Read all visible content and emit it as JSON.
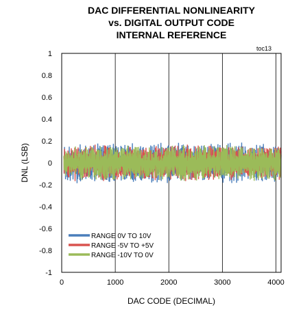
{
  "chart_data": {
    "type": "line",
    "title_lines": [
      "DAC DIFFERENTIAL NONLINEARITY",
      "vs. DIGITAL OUTPUT CODE",
      "INTERNAL REFERENCE"
    ],
    "corner_note": "toc13",
    "xlabel": "DAC CODE (DECIMAL)",
    "ylabel": "DNL (LSB)",
    "xlim": [
      0,
      4096
    ],
    "ylim": [
      -1,
      1
    ],
    "x_ticks": [
      "0",
      "1000",
      "2000",
      "3000",
      "4000"
    ],
    "x_tick_values": [
      0,
      1000,
      2000,
      3000,
      4000
    ],
    "y_ticks": [
      "1",
      "0.8",
      "0.6",
      "0.4",
      "0.2",
      "0",
      "-0.2",
      "-0.4",
      "-0.6",
      "-0.8",
      "-1"
    ],
    "y_tick_values": [
      1,
      0.8,
      0.6,
      0.4,
      0.2,
      0,
      -0.2,
      -0.4,
      -0.6,
      -0.8,
      -1
    ],
    "grid": "vertical",
    "legend_position": "bottom-left",
    "series": [
      {
        "name": "RANGE 0V TO 10V",
        "color": "#4a7ebb",
        "amplitude": 0.17,
        "seed": 11
      },
      {
        "name": "RANGE -5V TO +5V",
        "color": "#d9534f",
        "amplitude": 0.15,
        "seed": 23
      },
      {
        "name": "RANGE -10V TO 0V",
        "color": "#9bbb59",
        "amplitude": 0.15,
        "seed": 37
      }
    ],
    "data_description": "Noise-like DNL trace spanning codes 0-4095, bounded roughly within ±0.2 LSB"
  }
}
